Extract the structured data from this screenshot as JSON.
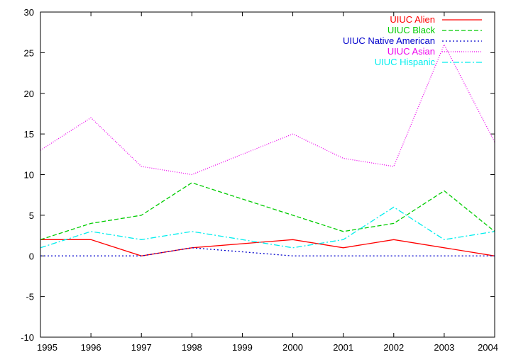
{
  "chart_data": {
    "type": "line",
    "x": [
      1995,
      1996,
      1997,
      1998,
      1999,
      2000,
      2001,
      2002,
      2003,
      2004
    ],
    "x_ticks": [
      "1995",
      "1996",
      "1997",
      "1998",
      "1999",
      "2000",
      "2001",
      "2002",
      "2003",
      "2004"
    ],
    "y_ticks": [
      "-10",
      "-5",
      "0",
      "5",
      "10",
      "15",
      "20",
      "25",
      "30"
    ],
    "xlim": [
      1995,
      2004
    ],
    "ylim": [
      -10,
      30
    ],
    "grid": false,
    "legend_position": "top-right",
    "series": [
      {
        "name": "UIUC Alien",
        "color": "#ff0000",
        "dash": "solid",
        "points": [
          [
            1995,
            2
          ],
          [
            1996,
            2
          ],
          [
            1997,
            0
          ],
          [
            1998,
            1
          ],
          [
            2000,
            2
          ],
          [
            2001,
            1
          ],
          [
            2002,
            2
          ],
          [
            2004,
            0
          ]
        ]
      },
      {
        "name": "UIUC Black",
        "color": "#00cc00",
        "dash": "dashed",
        "points": [
          [
            1995,
            2
          ],
          [
            1996,
            4
          ],
          [
            1997,
            5
          ],
          [
            1998,
            9
          ],
          [
            2000,
            5
          ],
          [
            2001,
            3
          ],
          [
            2002,
            4
          ],
          [
            2003,
            8
          ],
          [
            2004,
            3
          ]
        ]
      },
      {
        "name": "UIUC Native American",
        "color": "#0000cc",
        "dash": "dotted",
        "points": [
          [
            1995,
            0
          ],
          [
            1997,
            0
          ],
          [
            1998,
            1
          ],
          [
            2000,
            0
          ],
          [
            2004,
            0
          ]
        ]
      },
      {
        "name": "UIUC Asian",
        "color": "#ee00ee",
        "dash": "fine-dotted",
        "points": [
          [
            1995,
            13
          ],
          [
            1996,
            17
          ],
          [
            1997,
            11
          ],
          [
            1998,
            10
          ],
          [
            2000,
            15
          ],
          [
            2001,
            12
          ],
          [
            2002,
            11
          ],
          [
            2003,
            26
          ],
          [
            2004,
            14
          ]
        ]
      },
      {
        "name": "UIUC Hispanic",
        "color": "#00eeee",
        "dash": "dash-dot",
        "points": [
          [
            1995,
            1
          ],
          [
            1996,
            3
          ],
          [
            1997,
            2
          ],
          [
            1998,
            3
          ],
          [
            2000,
            1
          ],
          [
            2001,
            2
          ],
          [
            2002,
            6
          ],
          [
            2003,
            2
          ],
          [
            2004,
            3
          ]
        ]
      }
    ]
  }
}
